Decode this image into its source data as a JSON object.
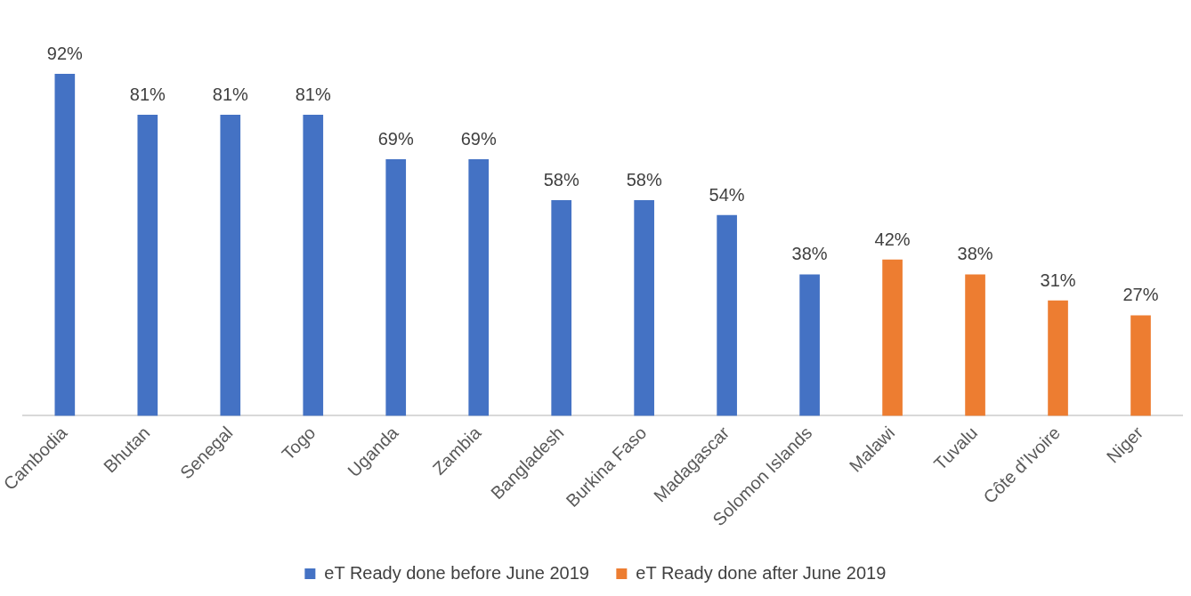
{
  "chart_data": {
    "type": "bar",
    "categories": [
      "Cambodia",
      "Bhutan",
      "Senegal",
      "Togo",
      "Uganda",
      "Zambia",
      "Bangladesh",
      "Burkina Faso",
      "Madagascar",
      "Solomon Islands",
      "Malawi",
      "Tuvalu",
      "Côte d’Ivoire",
      "Niger"
    ],
    "series": [
      {
        "name": "eT Ready done before June 2019",
        "color": "#4472c4",
        "values": [
          92,
          81,
          81,
          81,
          69,
          69,
          58,
          58,
          54,
          38,
          null,
          null,
          null,
          null
        ],
        "value_labels": [
          "92%",
          "81%",
          "81%",
          "81%",
          "69%",
          "69%",
          "58%",
          "58%",
          "54%",
          "38%",
          null,
          null,
          null,
          null
        ]
      },
      {
        "name": "eT Ready done after June 2019",
        "color": "#ed7d31",
        "values": [
          null,
          null,
          null,
          null,
          null,
          null,
          null,
          null,
          null,
          null,
          42,
          38,
          31,
          27
        ],
        "value_labels": [
          null,
          null,
          null,
          null,
          null,
          null,
          null,
          null,
          null,
          null,
          "42%",
          "38%",
          "31%",
          "27%"
        ]
      }
    ],
    "legend": "bottom",
    "grid": false
  }
}
